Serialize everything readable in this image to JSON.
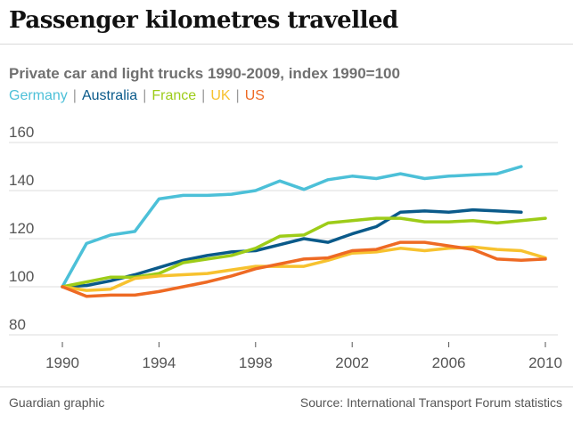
{
  "header": {
    "title": "Passenger kilometres travelled",
    "subtitle": "Private car and light trucks 1990-2009, index 1990=100"
  },
  "footer": {
    "credit": "Guardian graphic",
    "source": "Source: International Transport Forum statistics"
  },
  "legend": {
    "separator": "|"
  },
  "chart_data": {
    "type": "line",
    "title": "Passenger kilometres travelled",
    "subtitle": "Private car and light trucks 1990-2009, index 1990=100",
    "xlabel": "",
    "ylabel": "",
    "xlim": [
      1990,
      2010
    ],
    "ylim": [
      80,
      160
    ],
    "x_ticks": [
      1990,
      1994,
      1998,
      2002,
      2006,
      2010
    ],
    "y_ticks": [
      80,
      100,
      120,
      140,
      160
    ],
    "grid": "horizontal",
    "legend_position": "top-left",
    "x": [
      1990,
      1991,
      1992,
      1993,
      1994,
      1995,
      1996,
      1997,
      1998,
      1999,
      2000,
      2001,
      2002,
      2003,
      2004,
      2005,
      2006,
      2007,
      2008,
      2009,
      2010
    ],
    "series": [
      {
        "name": "Germany",
        "color": "#4cc0d8",
        "values": [
          100,
          118,
          121.5,
          123,
          136.5,
          138,
          138,
          138.5,
          140,
          144,
          140.5,
          144.5,
          146,
          145,
          147,
          145,
          146,
          146.5,
          147,
          150,
          null
        ]
      },
      {
        "name": "Australia",
        "color": "#0a5a8a",
        "values": [
          100,
          100.5,
          102.5,
          105,
          108,
          111,
          113,
          114.5,
          115,
          117.5,
          120,
          118.5,
          122,
          125,
          131,
          131.5,
          131,
          132,
          131.5,
          131,
          null
        ]
      },
      {
        "name": "France",
        "color": "#9dcc18",
        "values": [
          100,
          102,
          104,
          104,
          105.5,
          110,
          111.5,
          113,
          116,
          121,
          121.5,
          126.5,
          127.5,
          128.5,
          128.5,
          127,
          127,
          127.5,
          126.5,
          127.5,
          128.5
        ]
      },
      {
        "name": "UK",
        "color": "#f7c22f",
        "values": [
          100,
          98.5,
          99,
          103.5,
          104.5,
          105,
          105.5,
          107,
          108.5,
          108.5,
          108.5,
          111,
          114,
          114.5,
          116,
          115,
          116,
          116.5,
          115.5,
          115,
          112
        ]
      },
      {
        "name": "US",
        "color": "#ee6a24",
        "values": [
          100,
          96,
          96.5,
          96.5,
          98,
          100,
          102,
          104.5,
          107.5,
          109.5,
          111.5,
          112,
          115,
          115.5,
          118.5,
          118.5,
          117,
          115.5,
          111.5,
          111,
          111.5
        ]
      }
    ]
  }
}
